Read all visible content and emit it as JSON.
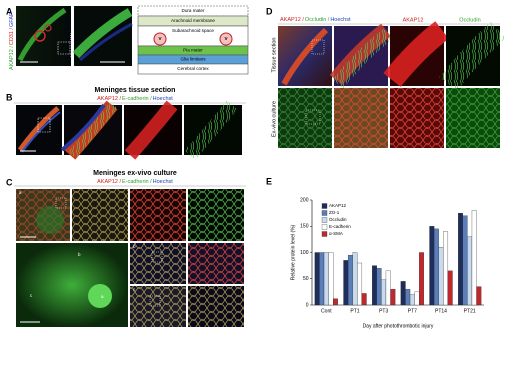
{
  "panels": {
    "A": {
      "label": "A",
      "stain": [
        "AKAP12 /",
        "CD31 /",
        "GFAP"
      ],
      "diagram": [
        "Dura mater",
        "Arachnoid membrane",
        "Subarachnoid space",
        "Pia mater",
        "Glia limitans",
        "Cerebral cortex"
      ],
      "vessel": "V"
    },
    "B": {
      "label": "B",
      "title": "Meninges tissue section",
      "stain": [
        "AKAP12 /",
        "E-cadherin /",
        "Hoechst"
      ]
    },
    "C": {
      "label": "C",
      "title": "Meninges ex-vivo culture",
      "stain": [
        "AKAP12 /",
        "E-cadherin /",
        "Hoechst"
      ],
      "sub": [
        "a",
        "b",
        "c"
      ]
    },
    "D": {
      "label": "D",
      "stain": [
        "AKAP12 /",
        "Occludin /",
        "Hoechst"
      ],
      "channels": [
        "AKAP12",
        "Occludin"
      ],
      "rows": [
        "Tissue section",
        "Ex-vivo culture"
      ]
    },
    "E": {
      "label": "E"
    }
  },
  "chart_data": {
    "type": "bar",
    "ylabel": "Relative protein level (%)",
    "xlabel": "Day after photothrombotic injury",
    "categories": [
      "Cont",
      "PT1",
      "PT3",
      "PT7",
      "PT14",
      "PT21"
    ],
    "series": [
      {
        "name": "AKAP12",
        "color": "#1f2d5a",
        "values": [
          100,
          85,
          75,
          45,
          150,
          175
        ]
      },
      {
        "name": "ZO-1",
        "color": "#5a7fb8",
        "values": [
          100,
          95,
          70,
          30,
          145,
          170
        ]
      },
      {
        "name": "Occludin",
        "color": "#c9d9ee",
        "values": [
          100,
          100,
          48,
          20,
          110,
          130
        ]
      },
      {
        "name": "E-cadherin",
        "color": "#ffffff",
        "values": [
          100,
          80,
          65,
          25,
          140,
          180
        ]
      },
      {
        "name": "α-SMA",
        "color": "#c0282d",
        "values": [
          12,
          22,
          30,
          100,
          65,
          35
        ]
      }
    ],
    "ylim": [
      0,
      200
    ],
    "yticks": [
      0,
      50,
      100,
      150,
      200
    ]
  }
}
